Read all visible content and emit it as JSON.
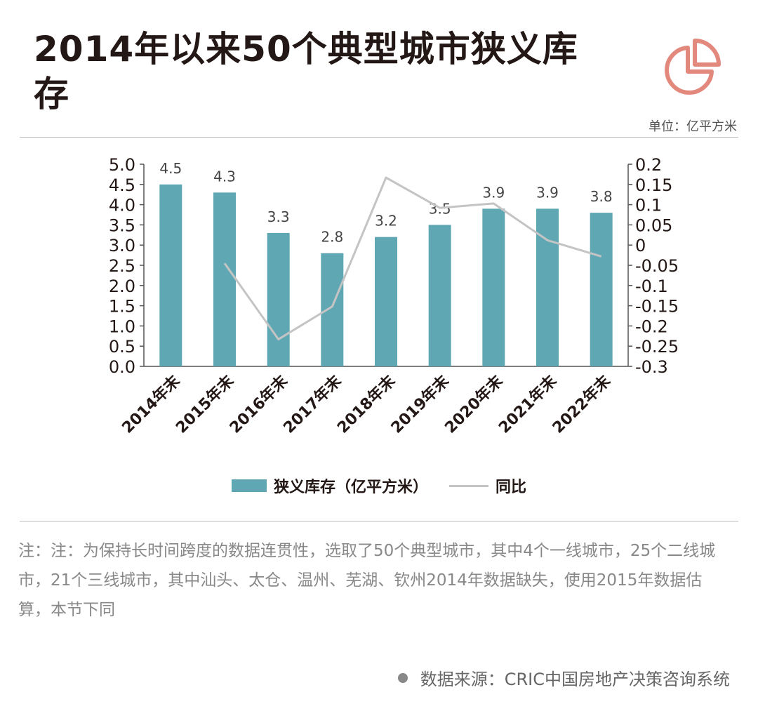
{
  "title": "2014年以来50个典型城市狭义库存",
  "unit_label": "单位：亿平方米",
  "icon": "pie-chart-icon",
  "colors": {
    "bar": "#5fa8b3",
    "line": "#c4c4c4",
    "logo": "#e2887c",
    "text": "#231815"
  },
  "chart_data": {
    "type": "bar",
    "categories": [
      "2014年末",
      "2015年末",
      "2016年末",
      "2017年末",
      "2018年末",
      "2019年末",
      "2020年末",
      "2021年末",
      "2022年末"
    ],
    "series": [
      {
        "name": "狭义库存（亿平方米）",
        "type": "bar",
        "axis": "left",
        "values": [
          4.5,
          4.3,
          3.3,
          2.8,
          3.2,
          3.5,
          3.9,
          3.9,
          3.8
        ],
        "labels": [
          "4.5",
          "4.3",
          "3.3",
          "2.8",
          "3.2",
          "3.5",
          "3.9",
          "3.9",
          "3.8"
        ]
      },
      {
        "name": "同比",
        "type": "line",
        "axis": "right",
        "values": [
          null,
          -0.045,
          -0.233,
          -0.152,
          0.167,
          0.092,
          0.103,
          0.012,
          -0.028
        ]
      }
    ],
    "y_left": {
      "min": 0,
      "max": 5,
      "ticks": [
        "0.0",
        "0.5",
        "1.0",
        "1.5",
        "2.0",
        "2.5",
        "3.0",
        "3.5",
        "4.0",
        "4.5",
        "5.0"
      ]
    },
    "y_right": {
      "min": -0.3,
      "max": 0.2,
      "ticks": [
        "-0.3",
        "-0.25",
        "-0.2",
        "-0.15",
        "-0.1",
        "-0.05",
        "0",
        "0.05",
        "0.1",
        "0.15",
        "0.2"
      ]
    },
    "grid": false,
    "legend": "bottom"
  },
  "note": "注：注：为保持长时间跨度的数据连贯性，选取了50个典型城市，其中4个一线城市，25个二线城市，21个三线城市，其中汕头、太仓、温州、芜湖、钦州2014年数据缺失，使用2015年数据估算，本节下同",
  "source": "数据来源：CRIC中国房地产决策咨询系统"
}
